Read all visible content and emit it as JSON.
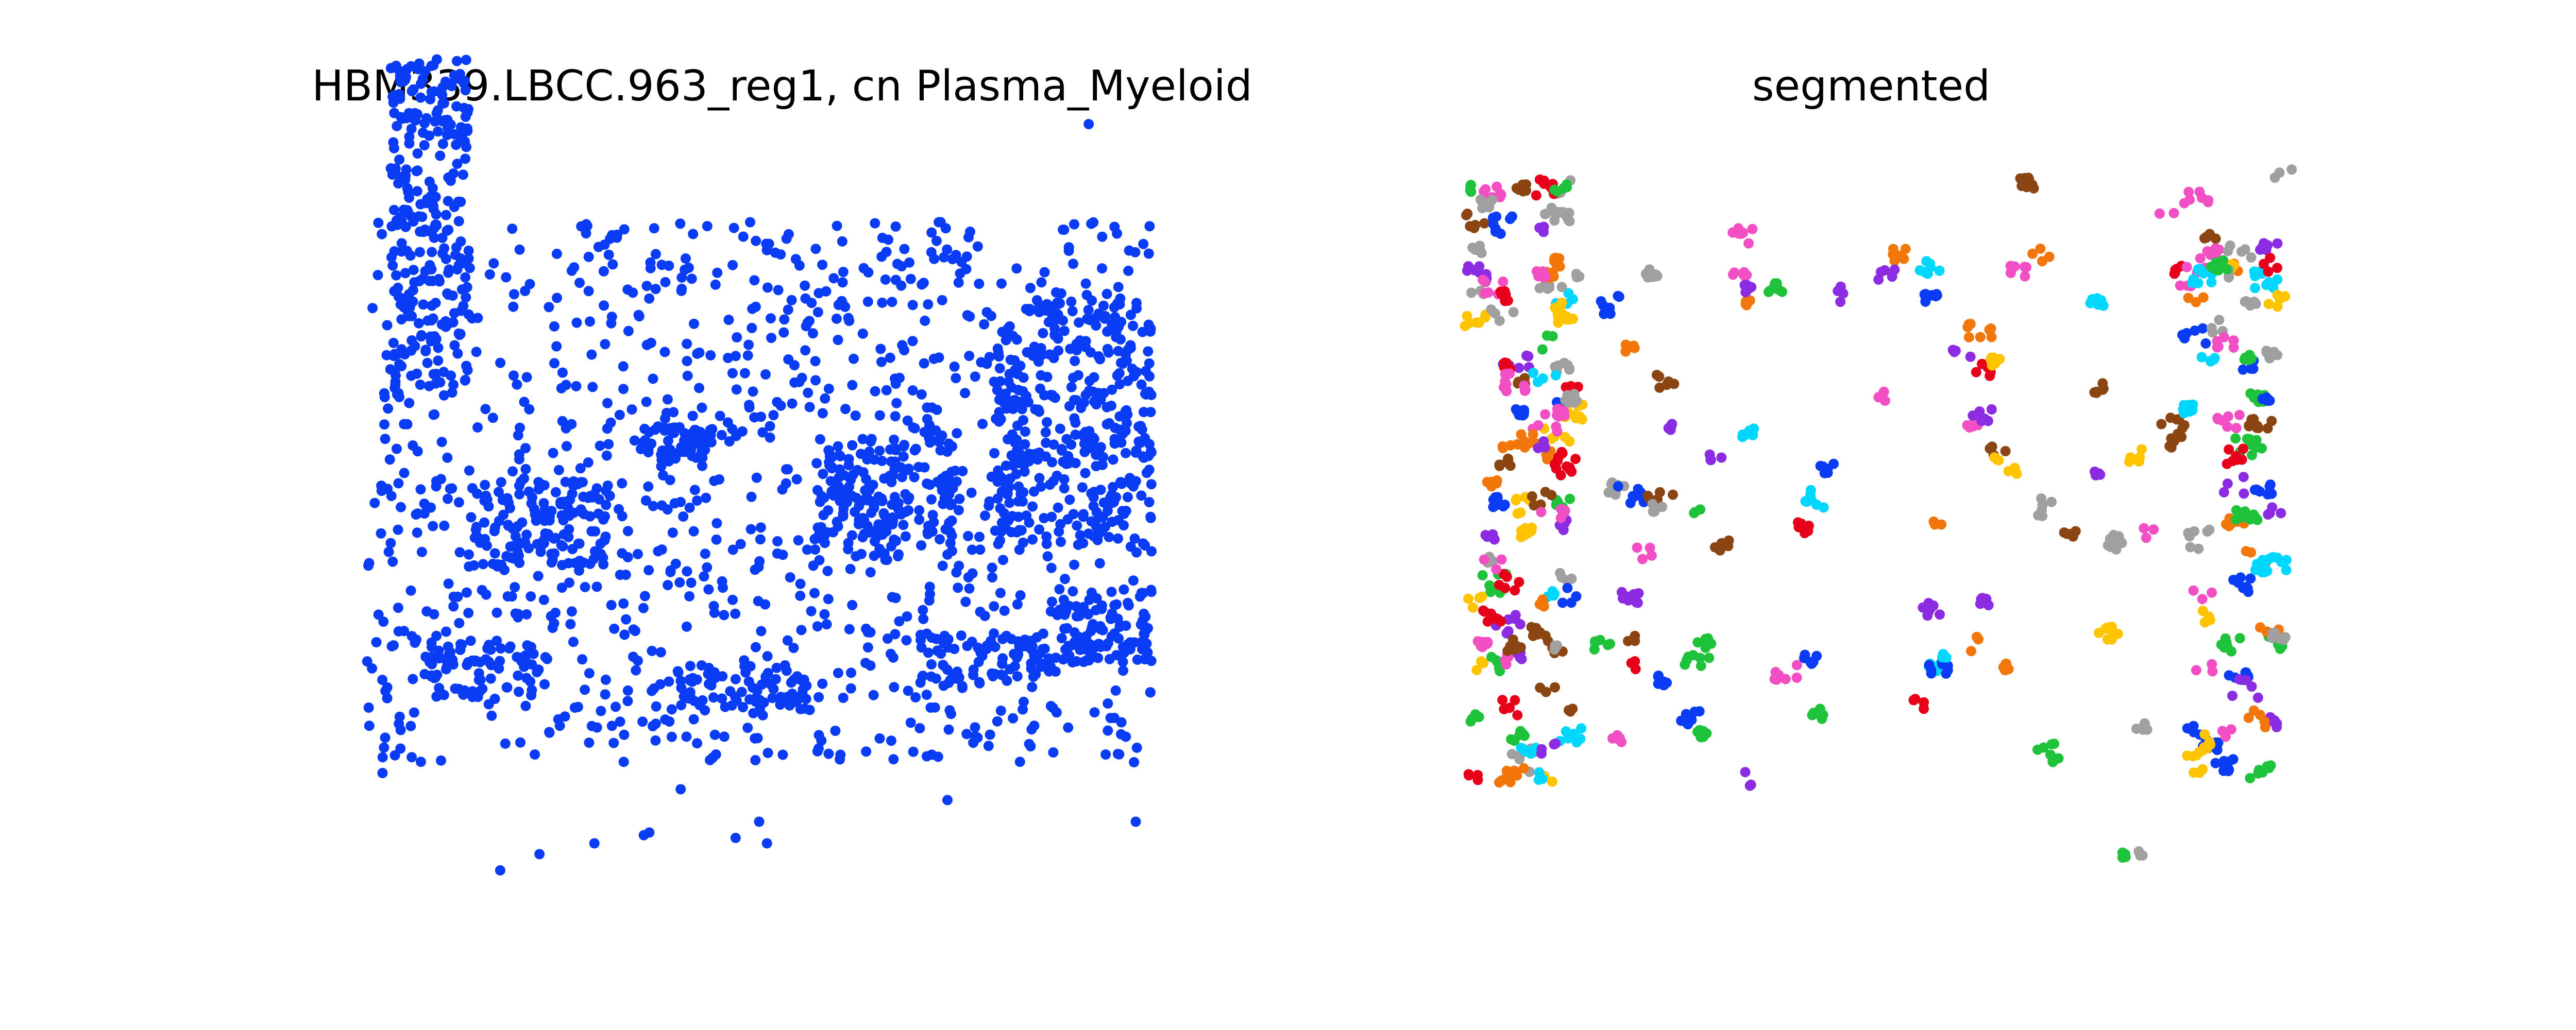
{
  "chart_data": [
    {
      "type": "scatter",
      "title": "HBM339.LBCC.963_reg1, cn Plasma_Myeloid",
      "xlabel": "",
      "ylabel": "",
      "axes": "off",
      "grid": false,
      "legend": "none",
      "xlim": [
        0,
        100
      ],
      "ylim": [
        0,
        100
      ],
      "color": "#0a3cf5",
      "seed": 11,
      "n_background_points": 1100,
      "dense_regions": [
        {
          "x": 3,
          "y": 70,
          "w": 10,
          "h": 60,
          "n": 260
        },
        {
          "x": 80,
          "y": 40,
          "w": 20,
          "h": 45,
          "n": 300
        },
        {
          "x": 57,
          "y": 38,
          "w": 18,
          "h": 22,
          "n": 160
        },
        {
          "x": 13,
          "y": 36,
          "w": 18,
          "h": 16,
          "n": 120
        },
        {
          "x": 35,
          "y": 56,
          "w": 9,
          "h": 6,
          "n": 50
        },
        {
          "x": 8,
          "y": 12,
          "w": 14,
          "h": 10,
          "n": 70
        },
        {
          "x": 88,
          "y": 18,
          "w": 12,
          "h": 14,
          "n": 90
        },
        {
          "x": 70,
          "y": 14,
          "w": 18,
          "h": 10,
          "n": 80
        },
        {
          "x": 40,
          "y": 10,
          "w": 16,
          "h": 8,
          "n": 60
        }
      ],
      "sparse_points": [
        {
          "x": 92,
          "y": 118
        },
        {
          "x": 100,
          "y": 39
        },
        {
          "x": 2,
          "y": -2
        },
        {
          "x": 40,
          "y": -5
        },
        {
          "x": 74,
          "y": -7
        },
        {
          "x": 50,
          "y": -11
        },
        {
          "x": 36,
          "y": -13
        },
        {
          "x": 98,
          "y": -11
        },
        {
          "x": 47,
          "y": -14
        },
        {
          "x": 35.3,
          "y": -13.5
        },
        {
          "x": 51,
          "y": -15
        },
        {
          "x": 29,
          "y": -15
        },
        {
          "x": 22,
          "y": -17
        },
        {
          "x": 17,
          "y": -20
        }
      ]
    },
    {
      "type": "scatter",
      "title": "segmented",
      "xlabel": "",
      "ylabel": "",
      "axes": "off",
      "grid": false,
      "legend": "none",
      "xlim": [
        0,
        100
      ],
      "ylim": [
        0,
        100
      ],
      "seed": 29,
      "palette": [
        "#0a3cf5",
        "#f2760a",
        "#1fc23b",
        "#e8001a",
        "#8b2be2",
        "#8b4513",
        "#f24fc4",
        "#a0a0a0",
        "#ffc400",
        "#00d7ff"
      ],
      "n_segments": 230
    }
  ]
}
